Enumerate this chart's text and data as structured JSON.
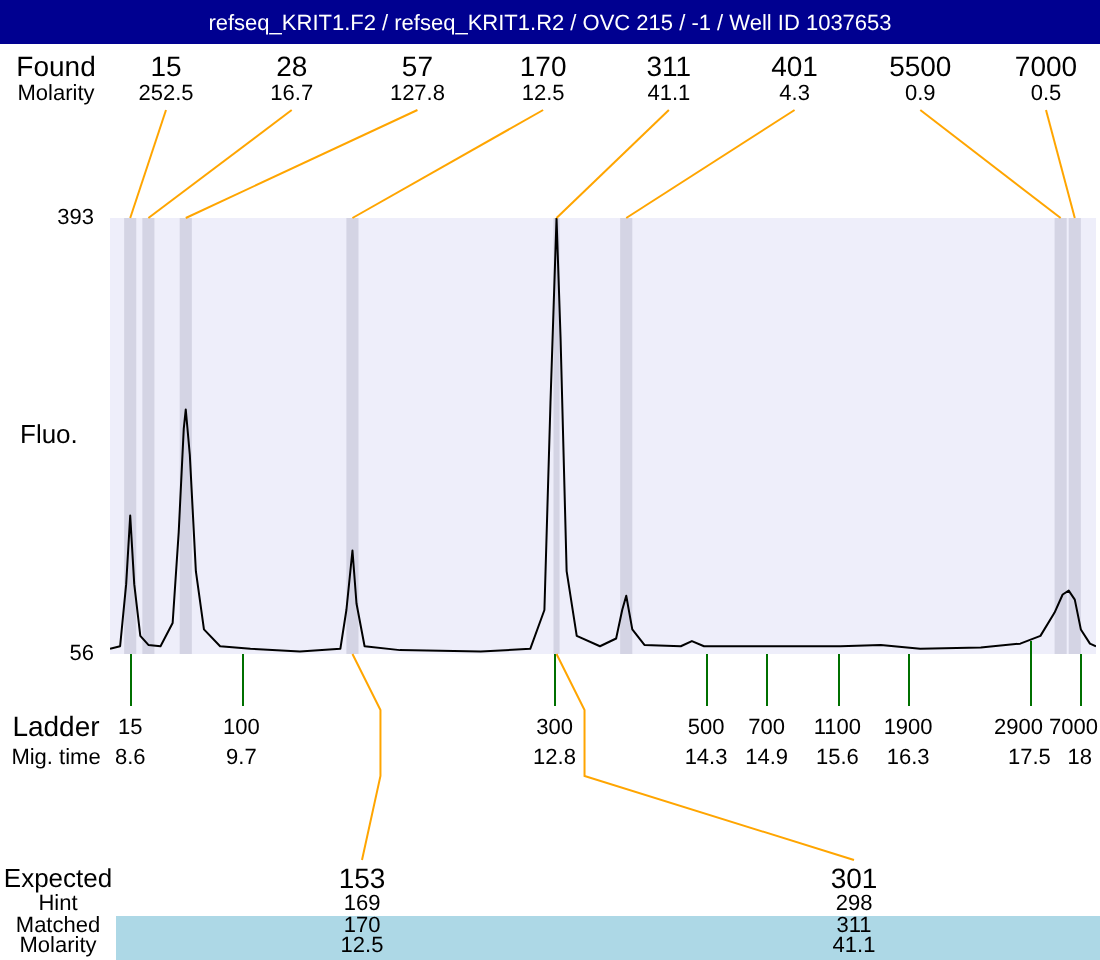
{
  "chart_data": {
    "type": "line",
    "title": "refseq_KRIT1.F2 / refseq_KRIT1.R2 / OVC 215 / -1 / Well ID 1037653",
    "ylabel": "Fluo.",
    "xlabel": "Mig. time",
    "x": [
      8.4,
      8.5,
      8.56,
      8.6,
      8.64,
      8.7,
      8.78,
      8.9,
      9.02,
      9.08,
      9.13,
      9.15,
      9.19,
      9.25,
      9.33,
      9.49,
      9.79,
      10.28,
      10.68,
      10.74,
      10.8,
      10.84,
      10.92,
      11.27,
      12.07,
      12.56,
      12.7,
      12.76,
      12.82,
      12.86,
      12.92,
      13.02,
      13.25,
      13.41,
      13.47,
      13.51,
      13.57,
      13.69,
      14.05,
      14.16,
      14.28,
      14.84,
      15.63,
      16.03,
      16.42,
      17.02,
      17.41,
      17.61,
      17.75,
      17.83,
      17.89,
      17.95,
      18.01,
      18.1,
      18.16
    ],
    "series": [
      {
        "color": "#000000",
        "values": [
          60,
          62,
          110,
          163,
          110,
          70,
          63,
          62,
          80,
          150,
          230,
          245,
          210,
          120,
          75,
          62,
          60,
          58,
          60,
          90,
          136,
          95,
          62,
          59,
          58,
          60,
          90,
          250,
          393,
          300,
          120,
          70,
          62,
          68,
          90,
          101,
          75,
          63,
          62,
          66,
          62,
          62,
          62,
          63,
          60,
          61,
          64,
          70,
          88,
          102,
          105,
          98,
          75,
          64,
          62
        ]
      }
    ],
    "xlim": [
      8.4,
      18.16
    ],
    "xticks": [
      8.6,
      9.7,
      12.8,
      14.3,
      14.9,
      15.6,
      16.3,
      17.5,
      18
    ],
    "ylim": [
      56,
      393
    ],
    "yticks": [
      56,
      393
    ],
    "bands": [
      {
        "axis": "x",
        "from": 8.54,
        "to": 8.66,
        "color": "#d4d4e4"
      },
      {
        "axis": "x",
        "from": 8.72,
        "to": 8.84,
        "color": "#d4d4e4"
      },
      {
        "axis": "x",
        "from": 9.09,
        "to": 9.21,
        "color": "#d4d4e4"
      },
      {
        "axis": "x",
        "from": 10.74,
        "to": 10.86,
        "color": "#d4d4e4"
      },
      {
        "axis": "x",
        "from": 12.79,
        "to": 12.85,
        "color": "#d4d4e4"
      },
      {
        "axis": "x",
        "from": 13.45,
        "to": 13.57,
        "color": "#d4d4e4"
      },
      {
        "axis": "x",
        "from": 17.75,
        "to": 17.87,
        "color": "#d4d4e4"
      },
      {
        "axis": "x",
        "from": 17.89,
        "to": 18.01,
        "color": "#d4d4e4"
      }
    ],
    "annotations": [
      "Found\nMolarity",
      "Expected\nHint\nMatched\nMolarity",
      "Ladder",
      {
        "text": "15\n252.5",
        "x": 8.6,
        "y": 393
      },
      {
        "text": "28\n16.7",
        "x": 8.78,
        "y": 393
      },
      {
        "text": "57\n127.8",
        "x": 9.15,
        "y": 393
      },
      {
        "text": "170\n12.5",
        "x": 10.8,
        "y": 393
      },
      {
        "text": "311\n41.1",
        "x": 12.82,
        "y": 393
      },
      {
        "text": "401\n4.3",
        "x": 13.51,
        "y": 393
      },
      {
        "text": "5500\n0.9",
        "x": 17.81,
        "y": 393
      },
      {
        "text": "7000\n0.5",
        "x": 17.95,
        "y": 393
      },
      {
        "text": "153\n169\n170\n12.5",
        "x": 10.8,
        "y": 56
      },
      {
        "text": "301\n298\n311\n41.1",
        "x": 12.82,
        "y": 56
      },
      {
        "text": "15",
        "x": 8.6,
        "y": 56
      },
      {
        "text": "100",
        "x": 9.7,
        "y": 56
      },
      {
        "text": "300",
        "x": 12.8,
        "y": 56
      },
      {
        "text": "500",
        "x": 14.3,
        "y": 56
      },
      {
        "text": "700",
        "x": 14.9,
        "y": 56
      },
      {
        "text": "1100",
        "x": 15.6,
        "y": 56
      },
      {
        "text": "1900",
        "x": 16.3,
        "y": 56
      },
      {
        "text": "2900",
        "x": 17.5,
        "y": 66
      },
      {
        "text": "7000",
        "x": 18,
        "y": 56
      }
    ],
    "legend": false,
    "grid": false
  }
}
